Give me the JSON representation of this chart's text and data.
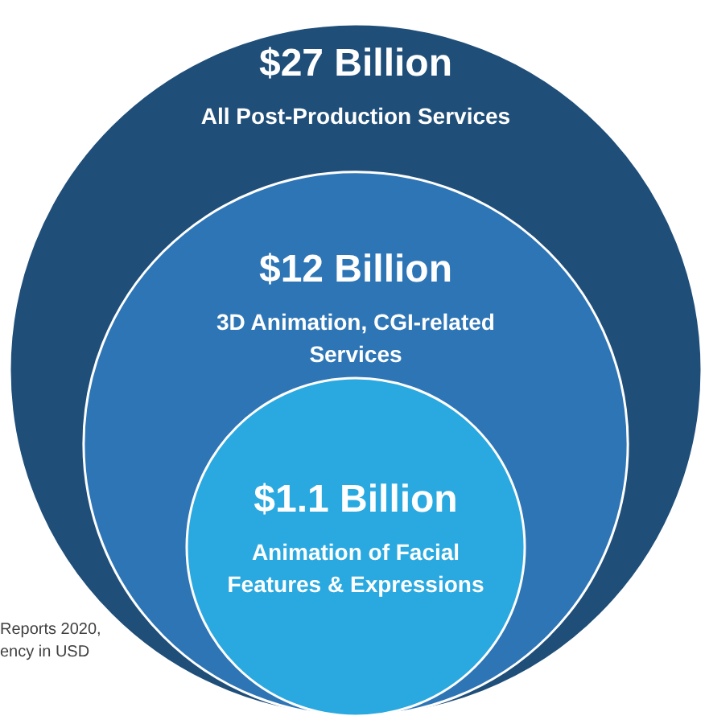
{
  "chart_data": {
    "type": "other",
    "categories": [
      "All Post-Production Services",
      "3D Animation, CGI-related Services",
      "Animation of Facial Features & Expressions"
    ],
    "values": [
      27,
      12,
      1.1
    ],
    "value_labels": [
      "$27 Billion",
      "$12 Billion",
      "$1.1 Billion"
    ],
    "colors": [
      "#1f4e79",
      "#2e75b6",
      "#2aa9e0"
    ],
    "annotations": [
      "Reports 2020,",
      "ency in USD"
    ]
  }
}
